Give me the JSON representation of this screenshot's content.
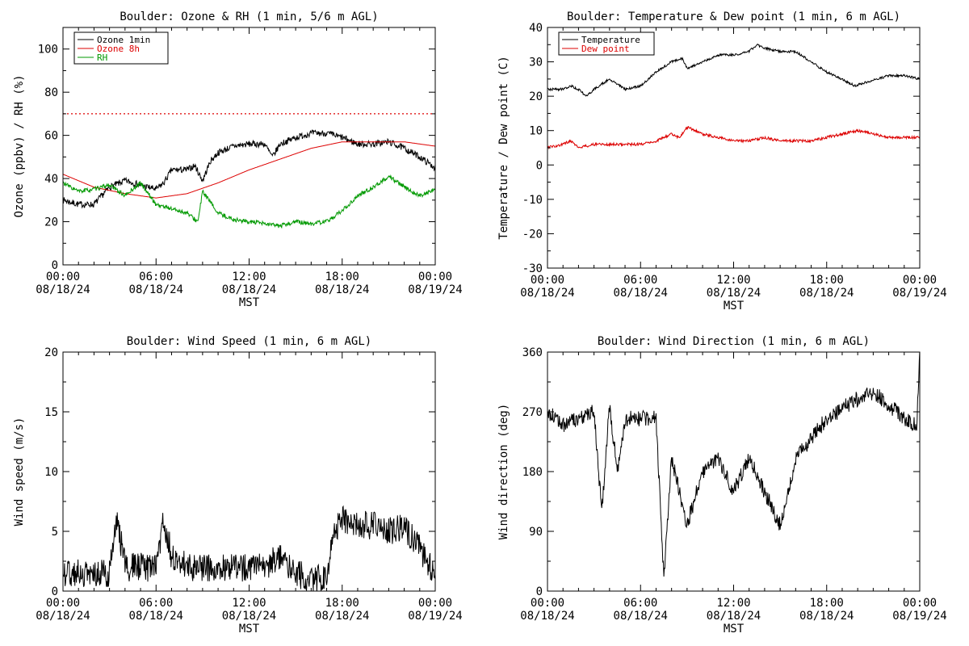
{
  "chart_data": [
    {
      "id": "ozone",
      "type": "line",
      "title": "Boulder: Ozone & RH (1 min, 5/6 m AGL)",
      "ylabel": "Ozone (ppbv) / RH (%)",
      "xlabel": "MST",
      "ylim": [
        0,
        110
      ],
      "yticks": [
        0,
        20,
        40,
        60,
        80,
        100
      ],
      "xticks": [
        {
          "time": "00:00",
          "date": "08/18/24",
          "hour": 0
        },
        {
          "time": "06:00",
          "date": "08/18/24",
          "hour": 6
        },
        {
          "time": "12:00",
          "date": "08/18/24",
          "hour": 12
        },
        {
          "time": "18:00",
          "date": "08/18/24",
          "hour": 18
        },
        {
          "time": "00:00",
          "date": "08/19/24",
          "hour": 24
        }
      ],
      "legend": {
        "position": "top-left"
      },
      "reference_lines": [
        {
          "y": 70,
          "style": "dotted",
          "color": "#dd0000"
        }
      ],
      "series": [
        {
          "name": "Ozone 1min",
          "color": "#000000",
          "noise": 1.5,
          "x": [
            0,
            1,
            2,
            3,
            4,
            5,
            6,
            6.5,
            7,
            8,
            8.5,
            9,
            9.5,
            10,
            11,
            12,
            13,
            13.5,
            14,
            15,
            16,
            17,
            18,
            19,
            20,
            21,
            22,
            23,
            24
          ],
          "y": [
            30,
            28,
            28,
            36,
            39,
            37,
            35,
            38,
            44,
            44,
            46,
            39,
            48,
            52,
            55,
            56,
            56,
            50,
            56,
            59,
            61,
            61,
            59,
            56,
            56,
            57,
            54,
            50,
            45
          ]
        },
        {
          "name": "Ozone 8h",
          "color": "#dd0000",
          "noise": 0,
          "x": [
            0,
            2,
            4,
            6,
            8,
            10,
            12,
            14,
            16,
            18,
            20,
            22,
            24
          ],
          "y": [
            42,
            36,
            33,
            31,
            33,
            38,
            44,
            49,
            54,
            57,
            57,
            57,
            55
          ]
        },
        {
          "name": "RH",
          "color": "#009900",
          "noise": 1.0,
          "x": [
            0,
            1,
            2,
            3,
            4,
            5,
            6,
            7,
            8,
            8.7,
            9,
            10,
            11,
            12,
            13,
            14,
            15,
            16,
            17,
            18,
            19,
            20,
            21,
            22,
            23,
            24
          ],
          "y": [
            38,
            34,
            35,
            37,
            32,
            38,
            28,
            26,
            24,
            20,
            34,
            24,
            21,
            20,
            19,
            18,
            20,
            19,
            20,
            25,
            32,
            36,
            41,
            36,
            32,
            35
          ]
        }
      ]
    },
    {
      "id": "temp",
      "type": "line",
      "title": "Boulder: Temperature & Dew point (1 min, 6 m AGL)",
      "ylabel": "Temperature / Dew point (C)",
      "xlabel": "MST",
      "ylim": [
        -30,
        40
      ],
      "yticks": [
        -30,
        -20,
        -10,
        0,
        10,
        20,
        30,
        40
      ],
      "xticks": [
        {
          "time": "00:00",
          "date": "08/18/24",
          "hour": 0
        },
        {
          "time": "06:00",
          "date": "08/18/24",
          "hour": 6
        },
        {
          "time": "12:00",
          "date": "08/18/24",
          "hour": 12
        },
        {
          "time": "18:00",
          "date": "08/18/24",
          "hour": 18
        },
        {
          "time": "00:00",
          "date": "08/19/24",
          "hour": 24
        }
      ],
      "legend": {
        "position": "top-left"
      },
      "series": [
        {
          "name": "Temperature",
          "color": "#000000",
          "noise": 0.35,
          "x": [
            0,
            1,
            1.5,
            2,
            2.5,
            3,
            4,
            5,
            6,
            7,
            8,
            8.7,
            9,
            10,
            11,
            12,
            13,
            13.5,
            14,
            15,
            16,
            17,
            18,
            19,
            19.8,
            20.5,
            22,
            23,
            24
          ],
          "y": [
            22,
            22,
            23,
            22,
            20,
            22,
            25,
            22,
            23,
            27,
            30,
            31,
            28,
            30,
            32,
            32,
            33,
            35,
            34,
            33,
            33,
            30,
            27,
            25,
            23,
            24,
            26,
            26,
            25
          ]
        },
        {
          "name": "Dew point",
          "color": "#dd0000",
          "noise": 0.4,
          "x": [
            0,
            1,
            1.5,
            2,
            3,
            4,
            5,
            6,
            7,
            8,
            8.5,
            9,
            9.5,
            10,
            11,
            12,
            13,
            14,
            15,
            16,
            17,
            18,
            19,
            20,
            21,
            22,
            23,
            24
          ],
          "y": [
            5,
            6,
            7,
            5,
            6,
            6,
            6,
            6,
            7,
            9,
            8,
            11,
            10,
            9,
            8,
            7,
            7,
            8,
            7,
            7,
            7,
            8,
            9,
            10,
            9,
            8,
            8,
            8
          ]
        }
      ]
    },
    {
      "id": "wspd",
      "type": "line",
      "title": "Boulder: Wind Speed (1 min, 6 m AGL)",
      "ylabel": "Wind speed (m/s)",
      "xlabel": "MST",
      "ylim": [
        0,
        20
      ],
      "yticks": [
        0,
        5,
        10,
        15,
        20
      ],
      "xticks": [
        {
          "time": "00:00",
          "date": "08/18/24",
          "hour": 0
        },
        {
          "time": "06:00",
          "date": "08/18/24",
          "hour": 6
        },
        {
          "time": "12:00",
          "date": "08/18/24",
          "hour": 12
        },
        {
          "time": "18:00",
          "date": "08/18/24",
          "hour": 18
        },
        {
          "time": "00:00",
          "date": "08/19/24",
          "hour": 24
        }
      ],
      "series": [
        {
          "name": "",
          "color": "#000000",
          "noise": 1.2,
          "x": [
            0,
            1,
            2,
            3,
            3.5,
            4,
            5,
            6,
            6.5,
            7,
            8,
            9,
            10,
            11,
            12,
            13,
            14,
            15,
            16,
            17,
            17.5,
            18,
            19,
            20,
            21,
            22,
            23,
            24
          ],
          "y": [
            1.5,
            1.5,
            1.5,
            1.5,
            6,
            2,
            2,
            2,
            6,
            3,
            2,
            2,
            2,
            2,
            2,
            2,
            3,
            1.5,
            1,
            1,
            5,
            6,
            5.5,
            5.5,
            5,
            5.5,
            3.5,
            1.5
          ]
        }
      ]
    },
    {
      "id": "wdir",
      "type": "line",
      "title": "Boulder: Wind Direction (1 min, 6 m AGL)",
      "ylabel": "Wind direction (deg)",
      "xlabel": "MST",
      "ylim": [
        0,
        360
      ],
      "yticks": [
        0,
        90,
        180,
        270,
        360
      ],
      "xticks": [
        {
          "time": "00:00",
          "date": "08/18/24",
          "hour": 0
        },
        {
          "time": "06:00",
          "date": "08/18/24",
          "hour": 6
        },
        {
          "time": "12:00",
          "date": "08/18/24",
          "hour": 12
        },
        {
          "time": "18:00",
          "date": "08/18/24",
          "hour": 18
        },
        {
          "time": "00:00",
          "date": "08/19/24",
          "hour": 24
        }
      ],
      "series": [
        {
          "name": "",
          "color": "#000000",
          "noise": 12,
          "x": [
            0,
            1,
            2,
            3,
            3.5,
            4,
            4.5,
            5,
            6,
            7,
            7.5,
            8,
            9,
            10,
            11,
            12,
            13,
            14,
            15,
            16,
            17,
            18,
            19,
            20,
            21,
            22,
            23,
            23.8,
            24
          ],
          "y": [
            270,
            250,
            260,
            270,
            120,
            280,
            180,
            260,
            260,
            260,
            20,
            200,
            100,
            180,
            200,
            150,
            200,
            150,
            100,
            200,
            230,
            260,
            275,
            290,
            300,
            280,
            260,
            250,
            360
          ]
        }
      ]
    }
  ]
}
